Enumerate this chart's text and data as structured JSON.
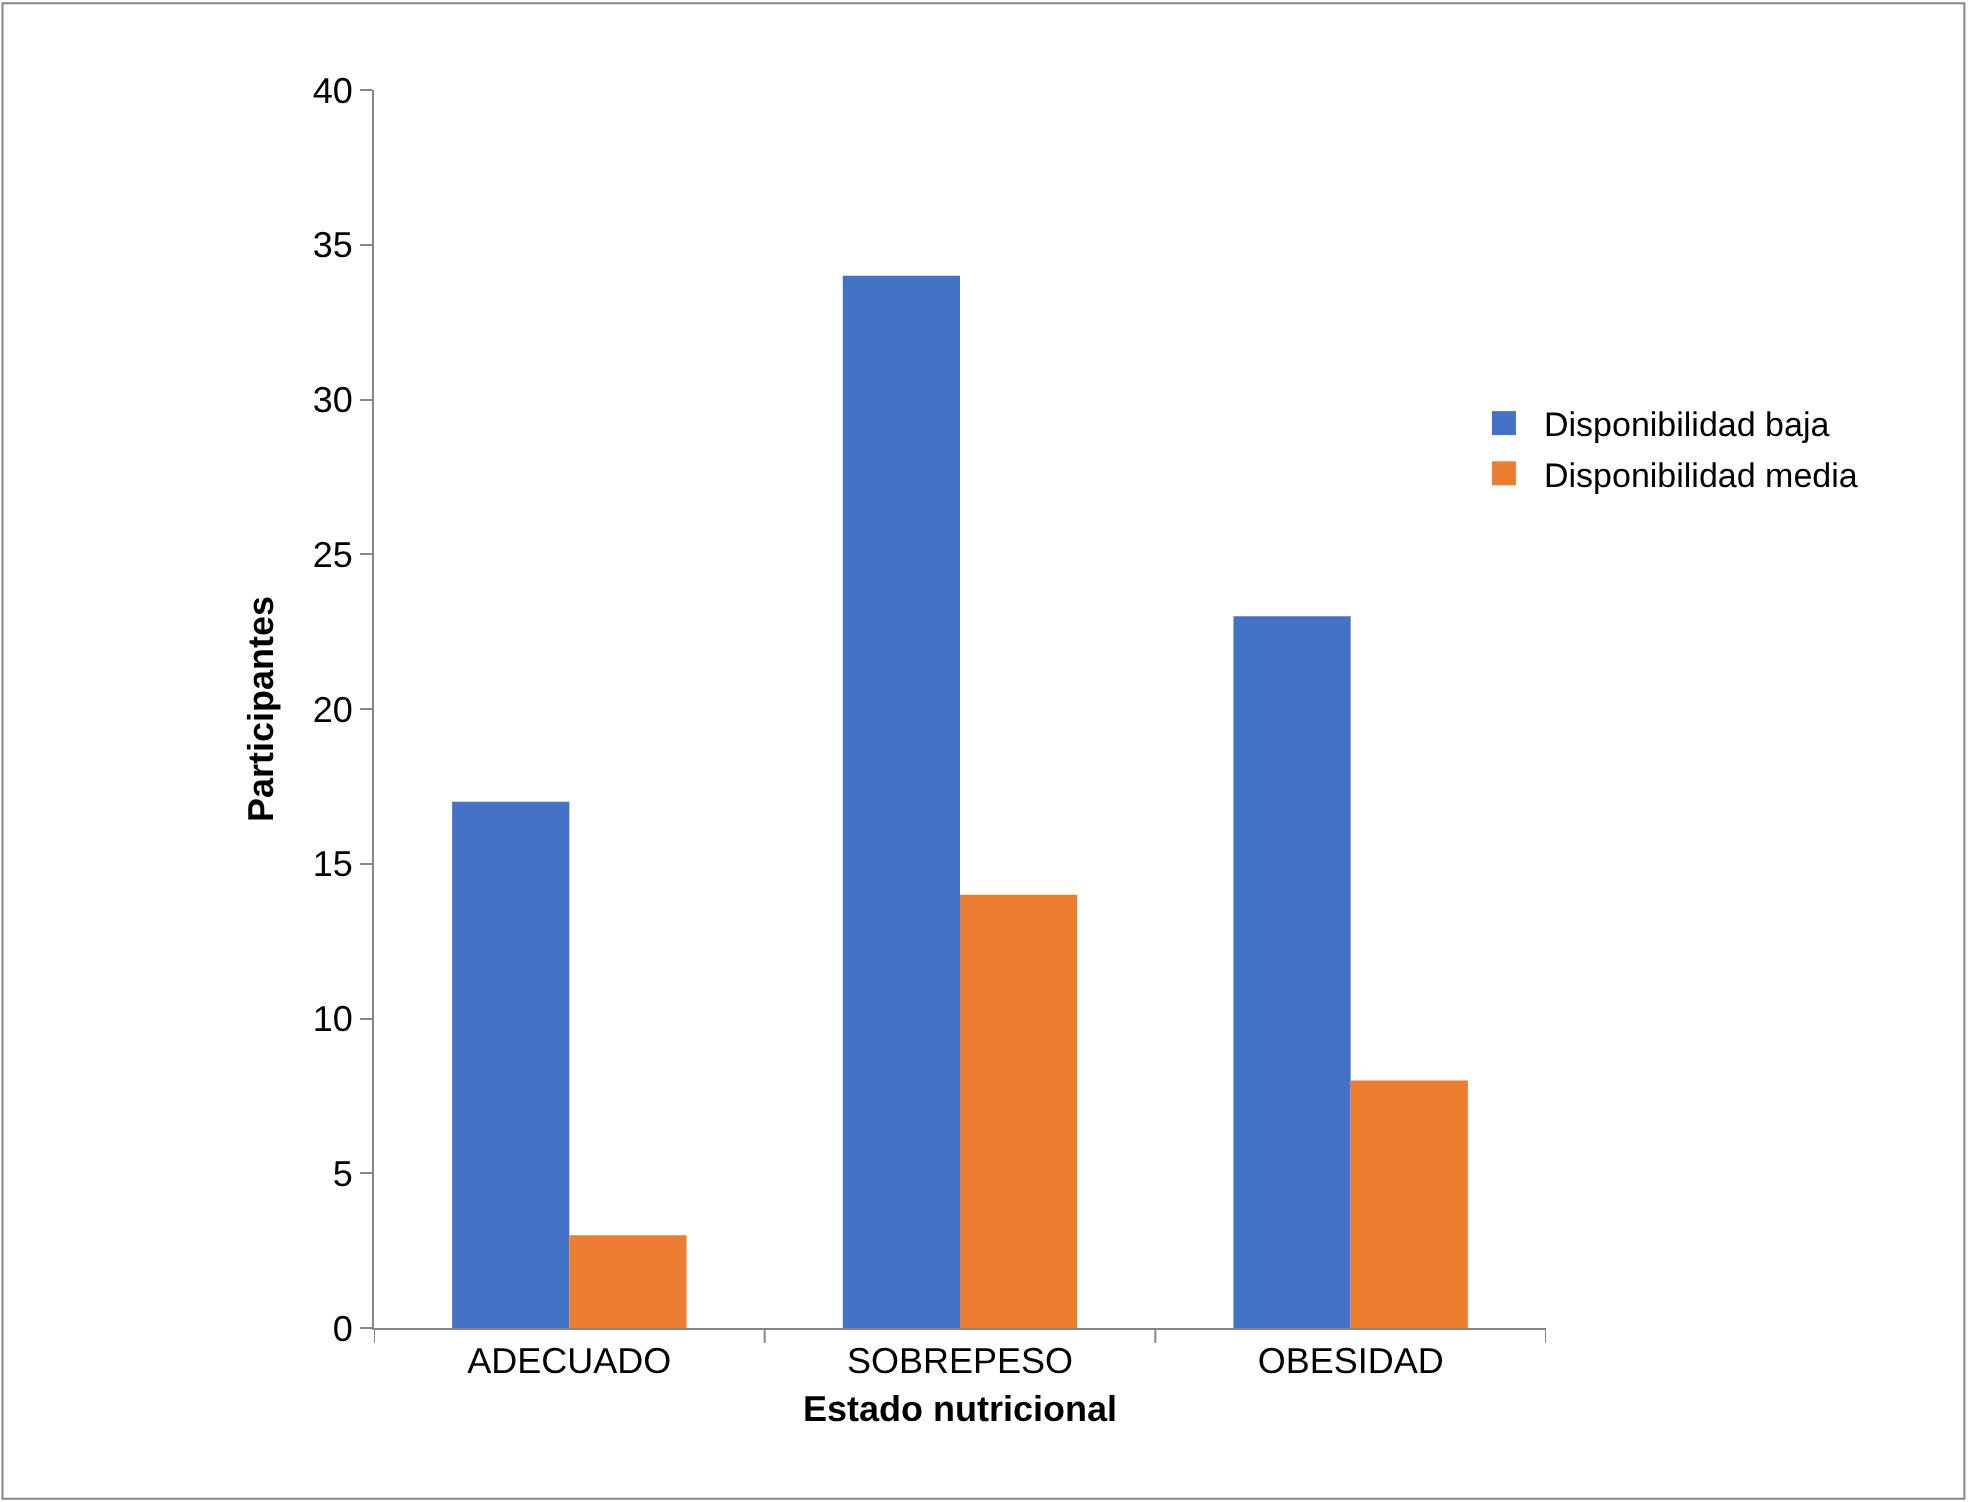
{
  "chart_data": {
    "type": "bar",
    "xlabel": "Estado nutricional",
    "ylabel": "Participantes",
    "categories": [
      "ADECUADO",
      "SOBREPESO",
      "OBESIDAD"
    ],
    "series": [
      {
        "name": "Disponibilidad baja",
        "color": "#4472c4",
        "values": [
          17,
          34,
          23
        ]
      },
      {
        "name": "Disponibilidad media",
        "color": "#ed7d31",
        "values": [
          3,
          14,
          8
        ]
      }
    ],
    "ylim": [
      0,
      40
    ],
    "yticks": [
      0,
      5,
      10,
      15,
      20,
      25,
      30,
      35,
      40
    ],
    "legend": "right"
  }
}
